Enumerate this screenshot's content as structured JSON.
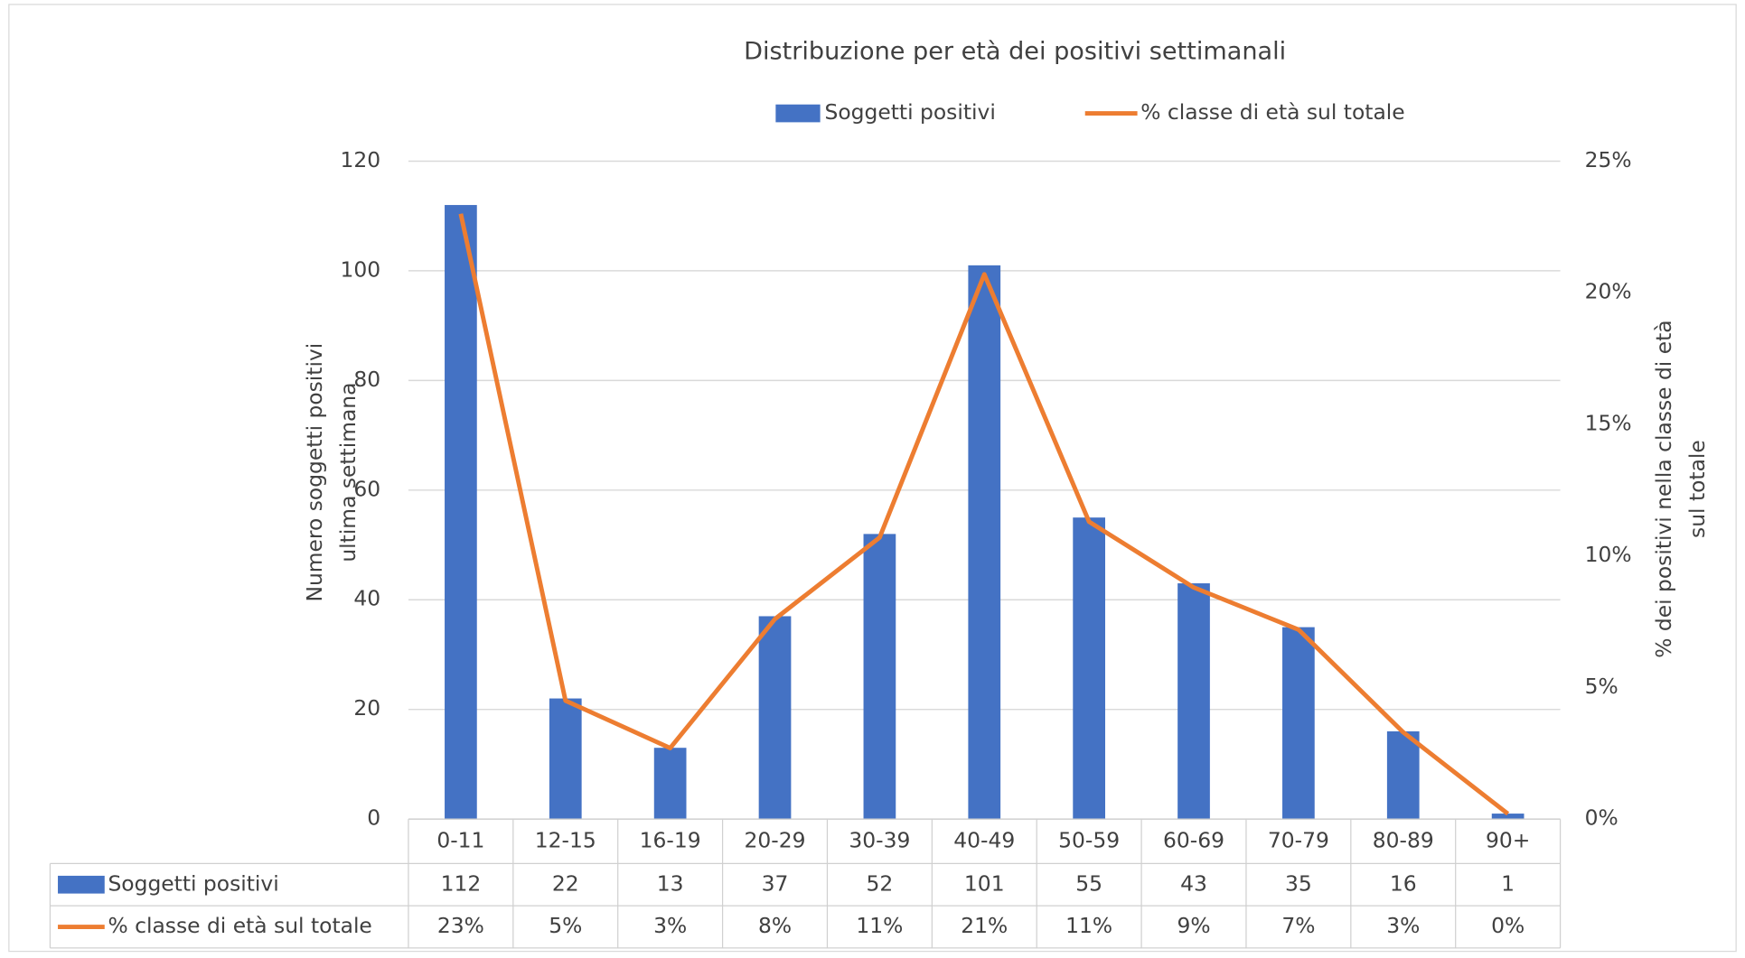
{
  "chart_data": {
    "type": "bar_line_table",
    "title": "Distribuzione per età dei positivi settimanali",
    "categories": [
      "0-11",
      "12-15",
      "16-19",
      "20-29",
      "30-39",
      "40-49",
      "50-59",
      "60-69",
      "70-79",
      "80-89",
      "90+"
    ],
    "series": [
      {
        "name": "Soggetti positivi",
        "type": "bar",
        "color": "#4472c4",
        "values": [
          112,
          22,
          13,
          37,
          52,
          101,
          55,
          43,
          35,
          16,
          1
        ]
      },
      {
        "name": "% classe di età sul totale",
        "type": "line",
        "axis": "y2",
        "color": "#ed7d31",
        "values": [
          23.0,
          4.5,
          2.7,
          7.6,
          10.7,
          20.7,
          11.3,
          8.8,
          7.2,
          3.3,
          0.2
        ],
        "value_labels": [
          "23%",
          "5%",
          "3%",
          "8%",
          "11%",
          "21%",
          "11%",
          "9%",
          "7%",
          "3%",
          "0%"
        ]
      }
    ],
    "y_label": [
      "Numero soggetti positivi",
      "ultima settimana"
    ],
    "y2_label": [
      "% dei positivi nella classe di età",
      "sul totale"
    ],
    "ylim": [
      0,
      120
    ],
    "yticks": [
      0,
      20,
      40,
      60,
      80,
      100,
      120
    ],
    "y2lim": [
      0,
      25
    ],
    "y2ticks": [
      {
        "value": 0,
        "label": "0%"
      },
      {
        "value": 5,
        "label": "5%"
      },
      {
        "value": 10,
        "label": "10%"
      },
      {
        "value": 15,
        "label": "15%"
      },
      {
        "value": 20,
        "label": "20%"
      },
      {
        "value": 25,
        "label": "25%"
      }
    ],
    "grid": true,
    "legend": "top"
  }
}
